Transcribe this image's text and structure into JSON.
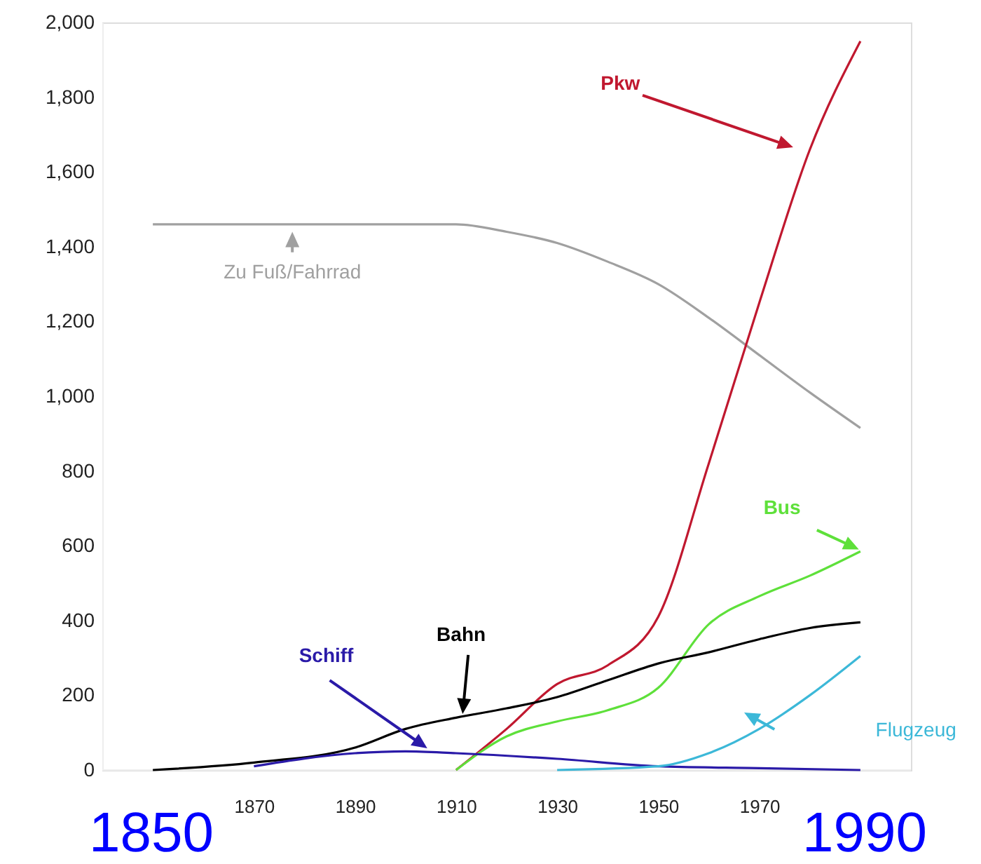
{
  "chart_data": {
    "type": "line",
    "xlim": [
      1840,
      2000
    ],
    "xticks": [
      1870,
      1890,
      1910,
      1930,
      1950,
      1970
    ],
    "ylim": [
      0,
      2000
    ],
    "yticks": [
      0,
      200,
      400,
      600,
      800,
      {
        "value": 1000,
        "label": "1,000"
      },
      {
        "value": 1200,
        "label": "1,200"
      },
      {
        "value": 1400,
        "label": "1,400"
      },
      {
        "value": 1600,
        "label": "1,600"
      },
      {
        "value": 1800,
        "label": "1,800"
      },
      {
        "value": 2000,
        "label": "2,000"
      }
    ],
    "grid": false,
    "marker": "none",
    "line_style": "solid",
    "series": [
      {
        "name": "Zu Fuß/Fahrrad",
        "color": "#a0a0a0",
        "x": [
          1850,
          1870,
          1890,
          1910,
          1920,
          1930,
          1940,
          1950,
          1960,
          1970,
          1980,
          1990
        ],
        "values": [
          1460,
          1460,
          1460,
          1460,
          1440,
          1410,
          1360,
          1300,
          1210,
          1110,
          1010,
          915
        ]
      },
      {
        "name": "Pkw",
        "color": "#c0182f",
        "x": [
          1910,
          1920,
          1930,
          1940,
          1950,
          1960,
          1970,
          1980,
          1990
        ],
        "values": [
          0,
          110,
          230,
          280,
          410,
          820,
          1250,
          1660,
          1950
        ]
      },
      {
        "name": "Bus",
        "color": "#5ee03a",
        "x": [
          1910,
          1920,
          1930,
          1940,
          1950,
          1960,
          1970,
          1980,
          1990
        ],
        "values": [
          0,
          90,
          130,
          160,
          220,
          390,
          465,
          520,
          585
        ]
      },
      {
        "name": "Bahn",
        "color": "#000000",
        "x": [
          1850,
          1870,
          1890,
          1900,
          1910,
          1920,
          1930,
          1940,
          1950,
          1960,
          1970,
          1980,
          1990
        ],
        "values": [
          0,
          20,
          60,
          110,
          140,
          165,
          195,
          240,
          285,
          315,
          350,
          380,
          395
        ]
      },
      {
        "name": "Schiff",
        "color": "#2a1aa8",
        "x": [
          1870,
          1890,
          1900,
          1910,
          1930,
          1950,
          1970,
          1990
        ],
        "values": [
          10,
          45,
          50,
          45,
          30,
          10,
          5,
          0
        ]
      },
      {
        "name": "Flugzeug",
        "color": "#3cb8d8",
        "x": [
          1930,
          1950,
          1960,
          1970,
          1980,
          1990
        ],
        "values": [
          0,
          10,
          45,
          110,
          200,
          305
        ]
      }
    ],
    "annotations": [
      "1850",
      "1990"
    ]
  }
}
